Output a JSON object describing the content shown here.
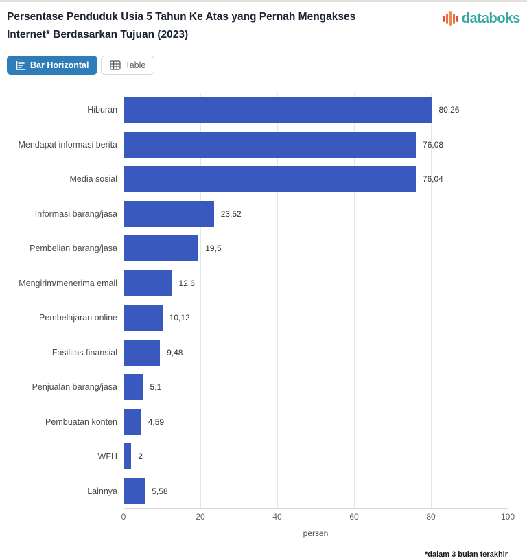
{
  "header": {
    "title": "Persentase Penduduk Usia 5 Tahun Ke Atas yang Pernah Mengakses Internet* Berdasarkan Tujuan (2023)",
    "logo": {
      "text": "databoks",
      "text_color": "#35a79e",
      "icon": "databoks-bars-icon",
      "icon_colors": [
        "#d94f43",
        "#e8703f",
        "#ef8e3c",
        "#e8703f",
        "#d94f43"
      ]
    }
  },
  "toolbar": {
    "bar_horizontal_label": "Bar Horizontal",
    "table_label": "Table",
    "active_button_color": "#2e7cb8"
  },
  "chart_data": {
    "type": "bar",
    "orientation": "horizontal",
    "title": "Persentase Penduduk Usia 5 Tahun Ke Atas yang Pernah Mengakses Internet* Berdasarkan Tujuan (2023)",
    "categories": [
      "Hiburan",
      "Mendapat informasi berita",
      "Media sosial",
      "Informasi barang/jasa",
      "Pembelian barang/jasa",
      "Mengirim/menerima email",
      "Pembelajaran online",
      "Fasilitas finansial",
      "Penjualan barang/jasa",
      "Pembuatan konten",
      "WFH",
      "Lainnya"
    ],
    "values": [
      80.26,
      76.08,
      76.04,
      23.52,
      19.5,
      12.6,
      10.12,
      9.48,
      5.1,
      4.59,
      2,
      5.58
    ],
    "value_labels": [
      "80,26",
      "76,08",
      "76,04",
      "23,52",
      "19,5",
      "12,6",
      "10,12",
      "9,48",
      "5,1",
      "4,59",
      "2",
      "5,58"
    ],
    "xlabel": "persen",
    "xlim": [
      0,
      100
    ],
    "xticks": [
      0,
      20,
      40,
      60,
      80,
      100
    ],
    "bar_color": "#3a59be",
    "grid": true,
    "legend": "none"
  },
  "footer": {
    "note": "*dalam 3 bulan terakhir"
  }
}
